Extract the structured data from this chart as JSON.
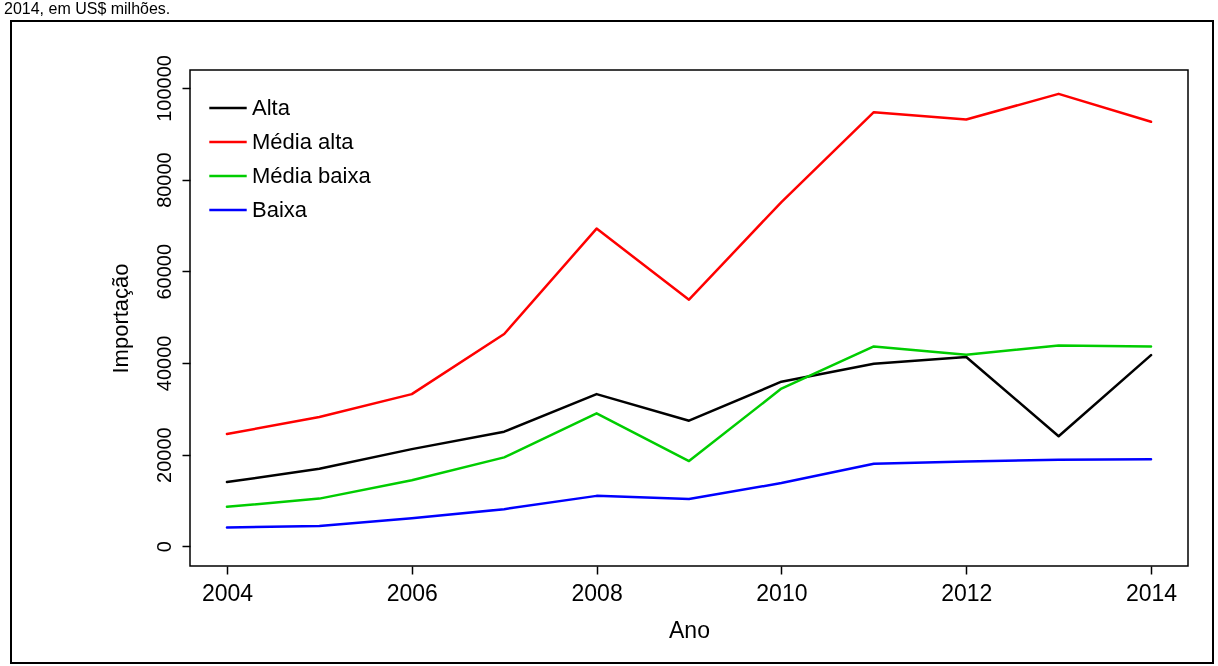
{
  "chart_data": {
    "type": "line",
    "xlabel": "Ano",
    "ylabel": "Importação",
    "annotations": [
      "2014, em US$ milhões."
    ],
    "x": [
      2004,
      2005,
      2006,
      2007,
      2008,
      2009,
      2010,
      2011,
      2012,
      2013,
      2014
    ],
    "series": [
      {
        "name": "Alta",
        "color": "#000000",
        "values": [
          14000,
          16900,
          21200,
          25000,
          33200,
          27400,
          35900,
          39800,
          41300,
          24000,
          41700
        ]
      },
      {
        "name": "Média alta",
        "color": "#ff0000",
        "values": [
          24500,
          28200,
          33200,
          46300,
          69300,
          53800,
          75100,
          94700,
          93100,
          98700,
          92600
        ]
      },
      {
        "name": "Média baixa",
        "color": "#00cd00",
        "values": [
          8600,
          10400,
          14400,
          19400,
          29000,
          18600,
          34400,
          43600,
          41800,
          43800,
          43600
        ]
      },
      {
        "name": "Baixa",
        "color": "#0000ff",
        "values": [
          4100,
          4400,
          6100,
          8100,
          11000,
          10300,
          13800,
          18000,
          18500,
          18900,
          19000
        ]
      }
    ],
    "xlim": [
      2003.6,
      2014.4
    ],
    "xticks": [
      2004,
      2006,
      2008,
      2010,
      2012,
      2014
    ],
    "ylim": [
      -4300,
      103900
    ],
    "yticks": [
      0,
      20000,
      40000,
      60000,
      80000,
      100000
    ],
    "grid": false,
    "legend": "top left",
    "line_style": "solid"
  }
}
